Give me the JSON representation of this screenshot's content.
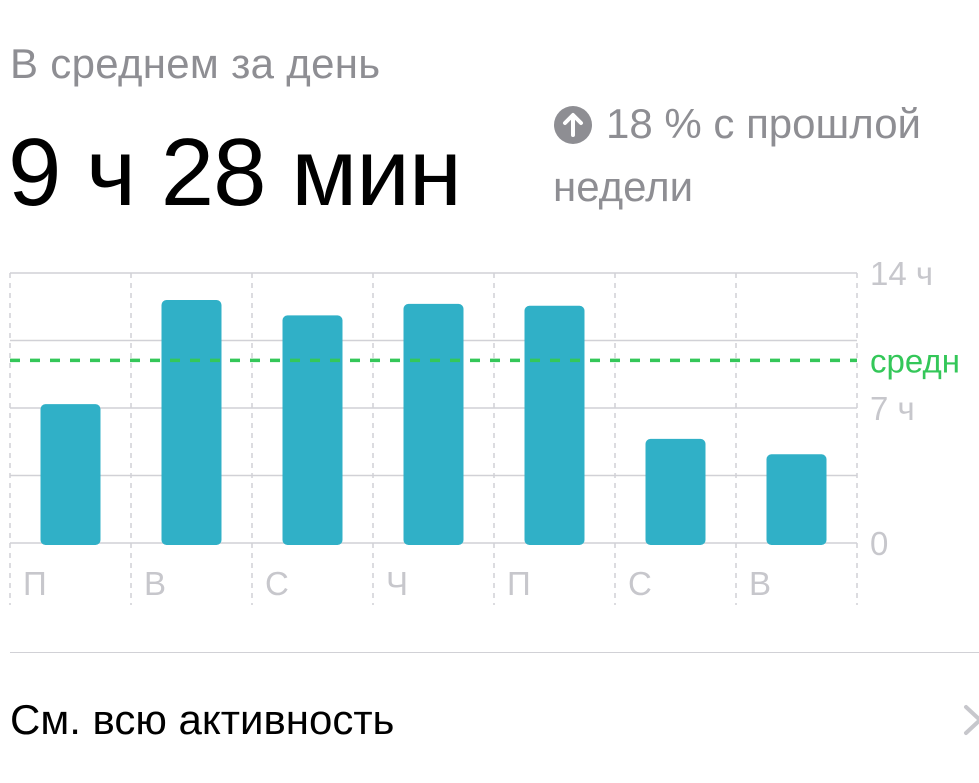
{
  "summary": {
    "subtitle": "В среднем за день",
    "value": "9 ч 28 мин",
    "delta_icon": "arrow-up-circle-icon",
    "delta_line1": "18 % с прошлой",
    "delta_line2": "недели"
  },
  "chart_data": {
    "type": "bar",
    "categories": [
      "П",
      "В",
      "С",
      "Ч",
      "П",
      "С",
      "В"
    ],
    "values": [
      7.2,
      12.6,
      11.8,
      12.4,
      12.3,
      5.4,
      4.6
    ],
    "ylim": [
      0,
      14
    ],
    "y_ticks": [
      {
        "value": 14,
        "label": "14 ч"
      },
      {
        "value": 7,
        "label": "7 ч"
      },
      {
        "value": 0,
        "label": "0"
      }
    ],
    "average": {
      "value": 9.47,
      "label": "средн"
    },
    "grid": true,
    "colors": {
      "bar": "#30b0c7",
      "average": "#34c759",
      "grid": "#d1d1d6",
      "label": "#c7c7cc"
    }
  },
  "footer": {
    "link_label": "См. всю активность",
    "chevron_icon": "chevron-right-icon"
  }
}
